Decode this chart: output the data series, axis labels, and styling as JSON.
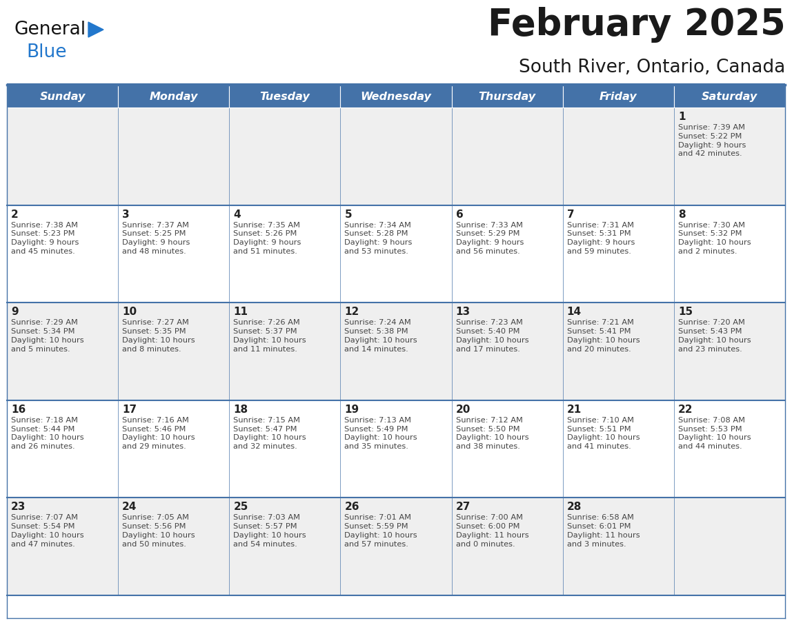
{
  "title": "February 2025",
  "subtitle": "South River, Ontario, Canada",
  "header_bg": "#4472A8",
  "header_text_color": "#FFFFFF",
  "cell_bg_light": "#EFEFEF",
  "cell_bg_white": "#FFFFFF",
  "border_color": "#4472A8",
  "day_headers": [
    "Sunday",
    "Monday",
    "Tuesday",
    "Wednesday",
    "Thursday",
    "Friday",
    "Saturday"
  ],
  "title_color": "#1a1a1a",
  "subtitle_color": "#1a1a1a",
  "day_number_color": "#222222",
  "cell_text_color": "#444444",
  "logo_black": "#111111",
  "logo_blue": "#2277CC",
  "triangle_color": "#2277CC",
  "calendar_data": [
    [
      null,
      null,
      null,
      null,
      null,
      null,
      {
        "day": "1",
        "sunrise": "7:39 AM",
        "sunset": "5:22 PM",
        "daylight": "9 hours",
        "daylight2": "and 42 minutes."
      }
    ],
    [
      {
        "day": "2",
        "sunrise": "7:38 AM",
        "sunset": "5:23 PM",
        "daylight": "9 hours",
        "daylight2": "and 45 minutes."
      },
      {
        "day": "3",
        "sunrise": "7:37 AM",
        "sunset": "5:25 PM",
        "daylight": "9 hours",
        "daylight2": "and 48 minutes."
      },
      {
        "day": "4",
        "sunrise": "7:35 AM",
        "sunset": "5:26 PM",
        "daylight": "9 hours",
        "daylight2": "and 51 minutes."
      },
      {
        "day": "5",
        "sunrise": "7:34 AM",
        "sunset": "5:28 PM",
        "daylight": "9 hours",
        "daylight2": "and 53 minutes."
      },
      {
        "day": "6",
        "sunrise": "7:33 AM",
        "sunset": "5:29 PM",
        "daylight": "9 hours",
        "daylight2": "and 56 minutes."
      },
      {
        "day": "7",
        "sunrise": "7:31 AM",
        "sunset": "5:31 PM",
        "daylight": "9 hours",
        "daylight2": "and 59 minutes."
      },
      {
        "day": "8",
        "sunrise": "7:30 AM",
        "sunset": "5:32 PM",
        "daylight": "10 hours",
        "daylight2": "and 2 minutes."
      }
    ],
    [
      {
        "day": "9",
        "sunrise": "7:29 AM",
        "sunset": "5:34 PM",
        "daylight": "10 hours",
        "daylight2": "and 5 minutes."
      },
      {
        "day": "10",
        "sunrise": "7:27 AM",
        "sunset": "5:35 PM",
        "daylight": "10 hours",
        "daylight2": "and 8 minutes."
      },
      {
        "day": "11",
        "sunrise": "7:26 AM",
        "sunset": "5:37 PM",
        "daylight": "10 hours",
        "daylight2": "and 11 minutes."
      },
      {
        "day": "12",
        "sunrise": "7:24 AM",
        "sunset": "5:38 PM",
        "daylight": "10 hours",
        "daylight2": "and 14 minutes."
      },
      {
        "day": "13",
        "sunrise": "7:23 AM",
        "sunset": "5:40 PM",
        "daylight": "10 hours",
        "daylight2": "and 17 minutes."
      },
      {
        "day": "14",
        "sunrise": "7:21 AM",
        "sunset": "5:41 PM",
        "daylight": "10 hours",
        "daylight2": "and 20 minutes."
      },
      {
        "day": "15",
        "sunrise": "7:20 AM",
        "sunset": "5:43 PM",
        "daylight": "10 hours",
        "daylight2": "and 23 minutes."
      }
    ],
    [
      {
        "day": "16",
        "sunrise": "7:18 AM",
        "sunset": "5:44 PM",
        "daylight": "10 hours",
        "daylight2": "and 26 minutes."
      },
      {
        "day": "17",
        "sunrise": "7:16 AM",
        "sunset": "5:46 PM",
        "daylight": "10 hours",
        "daylight2": "and 29 minutes."
      },
      {
        "day": "18",
        "sunrise": "7:15 AM",
        "sunset": "5:47 PM",
        "daylight": "10 hours",
        "daylight2": "and 32 minutes."
      },
      {
        "day": "19",
        "sunrise": "7:13 AM",
        "sunset": "5:49 PM",
        "daylight": "10 hours",
        "daylight2": "and 35 minutes."
      },
      {
        "day": "20",
        "sunrise": "7:12 AM",
        "sunset": "5:50 PM",
        "daylight": "10 hours",
        "daylight2": "and 38 minutes."
      },
      {
        "day": "21",
        "sunrise": "7:10 AM",
        "sunset": "5:51 PM",
        "daylight": "10 hours",
        "daylight2": "and 41 minutes."
      },
      {
        "day": "22",
        "sunrise": "7:08 AM",
        "sunset": "5:53 PM",
        "daylight": "10 hours",
        "daylight2": "and 44 minutes."
      }
    ],
    [
      {
        "day": "23",
        "sunrise": "7:07 AM",
        "sunset": "5:54 PM",
        "daylight": "10 hours",
        "daylight2": "and 47 minutes."
      },
      {
        "day": "24",
        "sunrise": "7:05 AM",
        "sunset": "5:56 PM",
        "daylight": "10 hours",
        "daylight2": "and 50 minutes."
      },
      {
        "day": "25",
        "sunrise": "7:03 AM",
        "sunset": "5:57 PM",
        "daylight": "10 hours",
        "daylight2": "and 54 minutes."
      },
      {
        "day": "26",
        "sunrise": "7:01 AM",
        "sunset": "5:59 PM",
        "daylight": "10 hours",
        "daylight2": "and 57 minutes."
      },
      {
        "day": "27",
        "sunrise": "7:00 AM",
        "sunset": "6:00 PM",
        "daylight": "11 hours",
        "daylight2": "and 0 minutes."
      },
      {
        "day": "28",
        "sunrise": "6:58 AM",
        "sunset": "6:01 PM",
        "daylight": "11 hours",
        "daylight2": "and 3 minutes."
      },
      null
    ]
  ]
}
